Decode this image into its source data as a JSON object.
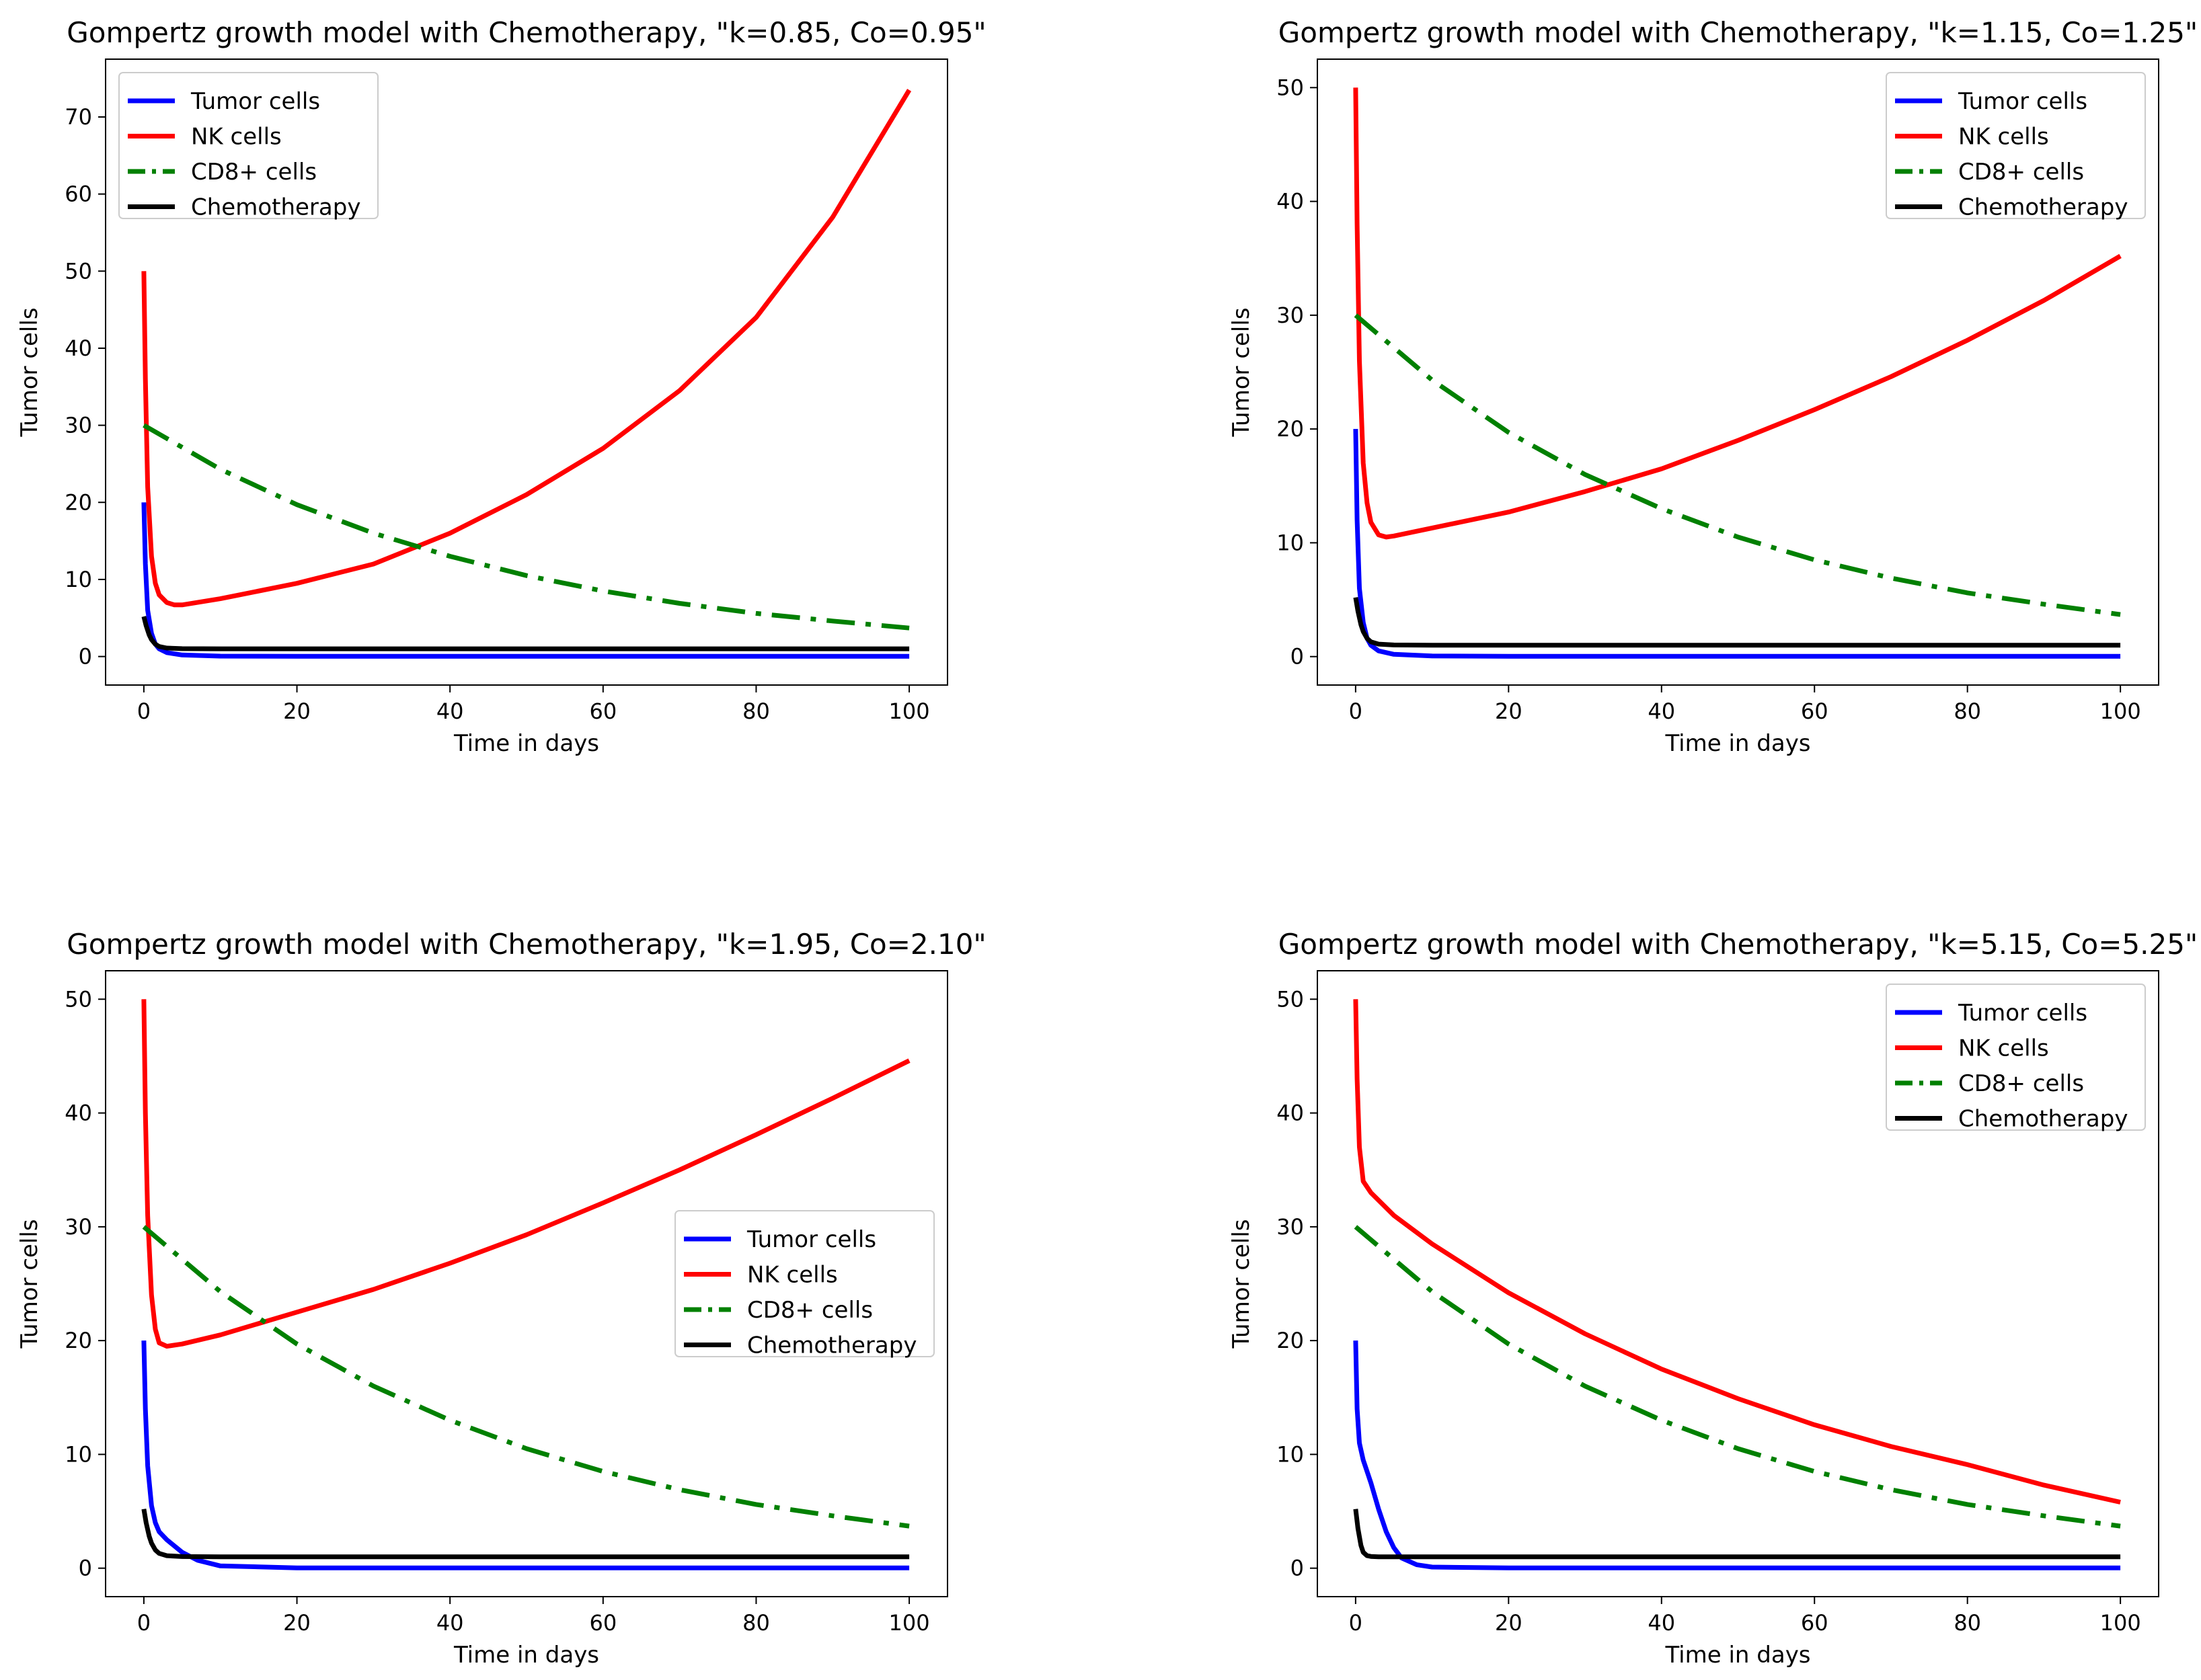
{
  "figure": {
    "type": "line-grid",
    "rows": 2,
    "cols": 2
  },
  "chart_data": [
    {
      "type": "line",
      "title": "Gompertz growth model with Chemotherapy, \"k=0.85, Co=0.95\"",
      "xlabel": "Time in days",
      "ylabel": "Tumor cells",
      "xlim": [
        -5,
        105
      ],
      "ylim": [
        -3.7,
        77.5
      ],
      "xticks": [
        0,
        20,
        40,
        60,
        80,
        100
      ],
      "yticks": [
        0,
        10,
        20,
        30,
        40,
        50,
        60,
        70
      ],
      "legend_position": "upper-left",
      "series": [
        {
          "name": "Tumor cells",
          "color": "#0000ff",
          "style": "solid",
          "points": [
            [
              0,
              20
            ],
            [
              0.2,
              12
            ],
            [
              0.5,
              6
            ],
            [
              1,
              3
            ],
            [
              1.5,
              1.6
            ],
            [
              2,
              1
            ],
            [
              3,
              0.5
            ],
            [
              5,
              0.2
            ],
            [
              10,
              0.05
            ],
            [
              20,
              0.02
            ],
            [
              100,
              0.02
            ]
          ]
        },
        {
          "name": "NK cells",
          "color": "#ff0000",
          "style": "solid",
          "points": [
            [
              0,
              50
            ],
            [
              0.2,
              36
            ],
            [
              0.5,
              22
            ],
            [
              1,
              13
            ],
            [
              1.5,
              9.5
            ],
            [
              2,
              8
            ],
            [
              3,
              7
            ],
            [
              4,
              6.7
            ],
            [
              5,
              6.7
            ],
            [
              10,
              7.5
            ],
            [
              20,
              9.5
            ],
            [
              30,
              12
            ],
            [
              40,
              16
            ],
            [
              50,
              21
            ],
            [
              60,
              27
            ],
            [
              70,
              34.5
            ],
            [
              80,
              44
            ],
            [
              90,
              57
            ],
            [
              100,
              73.5
            ]
          ]
        },
        {
          "name": "CD8+ cells",
          "color": "#008000",
          "style": "dashdot",
          "points": [
            [
              0,
              30
            ],
            [
              10,
              24.3
            ],
            [
              20,
              19.7
            ],
            [
              30,
              16
            ],
            [
              40,
              13
            ],
            [
              50,
              10.5
            ],
            [
              60,
              8.5
            ],
            [
              70,
              6.9
            ],
            [
              80,
              5.6
            ],
            [
              90,
              4.6
            ],
            [
              100,
              3.7
            ]
          ]
        },
        {
          "name": "Chemotherapy",
          "color": "#000000",
          "style": "solid",
          "points": [
            [
              0,
              5.2
            ],
            [
              0.3,
              4
            ],
            [
              0.7,
              2.8
            ],
            [
              1,
              2.2
            ],
            [
              1.5,
              1.6
            ],
            [
              2,
              1.3
            ],
            [
              3,
              1.1
            ],
            [
              5,
              1.02
            ],
            [
              10,
              1
            ],
            [
              100,
              1
            ]
          ]
        }
      ]
    },
    {
      "type": "line",
      "title": "Gompertz growth model with Chemotherapy, \"k=1.15, Co=1.25\"",
      "xlabel": "Time in days",
      "ylabel": "Tumor cells",
      "xlim": [
        -5,
        105
      ],
      "ylim": [
        -2.5,
        52.5
      ],
      "xticks": [
        0,
        20,
        40,
        60,
        80,
        100
      ],
      "yticks": [
        0,
        10,
        20,
        30,
        40,
        50
      ],
      "legend_position": "upper-right",
      "series": [
        {
          "name": "Tumor cells",
          "color": "#0000ff",
          "style": "solid",
          "points": [
            [
              0,
              20
            ],
            [
              0.2,
              12
            ],
            [
              0.5,
              6
            ],
            [
              1,
              3
            ],
            [
              1.5,
              1.6
            ],
            [
              2,
              1
            ],
            [
              3,
              0.5
            ],
            [
              5,
              0.2
            ],
            [
              10,
              0.05
            ],
            [
              20,
              0.02
            ],
            [
              100,
              0.02
            ]
          ]
        },
        {
          "name": "NK cells",
          "color": "#ff0000",
          "style": "solid",
          "points": [
            [
              0,
              50
            ],
            [
              0.2,
              38
            ],
            [
              0.5,
              26
            ],
            [
              1,
              17
            ],
            [
              1.5,
              13.5
            ],
            [
              2,
              11.8
            ],
            [
              3,
              10.7
            ],
            [
              4,
              10.5
            ],
            [
              5,
              10.6
            ],
            [
              10,
              11.3
            ],
            [
              20,
              12.7
            ],
            [
              30,
              14.5
            ],
            [
              40,
              16.5
            ],
            [
              50,
              19
            ],
            [
              60,
              21.7
            ],
            [
              70,
              24.6
            ],
            [
              80,
              27.8
            ],
            [
              90,
              31.3
            ],
            [
              100,
              35.2
            ]
          ]
        },
        {
          "name": "CD8+ cells",
          "color": "#008000",
          "style": "dashdot",
          "points": [
            [
              0,
              30
            ],
            [
              10,
              24.3
            ],
            [
              20,
              19.7
            ],
            [
              30,
              16
            ],
            [
              40,
              13
            ],
            [
              50,
              10.5
            ],
            [
              60,
              8.5
            ],
            [
              70,
              6.9
            ],
            [
              80,
              5.6
            ],
            [
              90,
              4.6
            ],
            [
              100,
              3.7
            ]
          ]
        },
        {
          "name": "Chemotherapy",
          "color": "#000000",
          "style": "solid",
          "points": [
            [
              0,
              5.2
            ],
            [
              0.3,
              4
            ],
            [
              0.7,
              2.8
            ],
            [
              1,
              2.2
            ],
            [
              1.5,
              1.6
            ],
            [
              2,
              1.3
            ],
            [
              3,
              1.1
            ],
            [
              5,
              1.02
            ],
            [
              10,
              1
            ],
            [
              100,
              1
            ]
          ]
        }
      ]
    },
    {
      "type": "line",
      "title": "Gompertz growth model with Chemotherapy, \"k=1.95, Co=2.10\"",
      "xlabel": "Time in days",
      "ylabel": "Tumor cells",
      "xlim": [
        -5,
        105
      ],
      "ylim": [
        -2.5,
        52.5
      ],
      "xticks": [
        0,
        20,
        40,
        60,
        80,
        100
      ],
      "yticks": [
        0,
        10,
        20,
        30,
        40,
        50
      ],
      "legend_position": "center-right",
      "series": [
        {
          "name": "Tumor cells",
          "color": "#0000ff",
          "style": "solid",
          "points": [
            [
              0,
              20
            ],
            [
              0.2,
              14
            ],
            [
              0.5,
              9
            ],
            [
              1,
              5.5
            ],
            [
              1.5,
              4
            ],
            [
              2,
              3.2
            ],
            [
              3,
              2.5
            ],
            [
              5,
              1.4
            ],
            [
              7,
              0.7
            ],
            [
              10,
              0.2
            ],
            [
              20,
              0.03
            ],
            [
              100,
              0.02
            ]
          ]
        },
        {
          "name": "NK cells",
          "color": "#ff0000",
          "style": "solid",
          "points": [
            [
              0,
              50
            ],
            [
              0.2,
              40
            ],
            [
              0.5,
              31
            ],
            [
              1,
              24
            ],
            [
              1.5,
              21
            ],
            [
              2,
              19.8
            ],
            [
              3,
              19.5
            ],
            [
              5,
              19.7
            ],
            [
              10,
              20.5
            ],
            [
              20,
              22.5
            ],
            [
              30,
              24.5
            ],
            [
              40,
              26.8
            ],
            [
              50,
              29.3
            ],
            [
              60,
              32.1
            ],
            [
              70,
              35
            ],
            [
              80,
              38.1
            ],
            [
              90,
              41.3
            ],
            [
              100,
              44.6
            ]
          ]
        },
        {
          "name": "CD8+ cells",
          "color": "#008000",
          "style": "dashdot",
          "points": [
            [
              0,
              30
            ],
            [
              10,
              24.3
            ],
            [
              20,
              19.7
            ],
            [
              30,
              16
            ],
            [
              40,
              13
            ],
            [
              50,
              10.5
            ],
            [
              60,
              8.5
            ],
            [
              70,
              6.9
            ],
            [
              80,
              5.6
            ],
            [
              90,
              4.6
            ],
            [
              100,
              3.7
            ]
          ]
        },
        {
          "name": "Chemotherapy",
          "color": "#000000",
          "style": "solid",
          "points": [
            [
              0,
              5.2
            ],
            [
              0.3,
              4
            ],
            [
              0.7,
              2.8
            ],
            [
              1,
              2.2
            ],
            [
              1.5,
              1.6
            ],
            [
              2,
              1.3
            ],
            [
              3,
              1.1
            ],
            [
              5,
              1.02
            ],
            [
              10,
              1
            ],
            [
              100,
              1
            ]
          ]
        }
      ]
    },
    {
      "type": "line",
      "title": "Gompertz growth model with Chemotherapy, \"k=5.15, Co=5.25\"",
      "xlabel": "Time in days",
      "ylabel": "Tumor cells",
      "xlim": [
        -5,
        105
      ],
      "ylim": [
        -2.5,
        52.5
      ],
      "xticks": [
        0,
        20,
        40,
        60,
        80,
        100
      ],
      "yticks": [
        0,
        10,
        20,
        30,
        40,
        50
      ],
      "legend_position": "upper-right",
      "series": [
        {
          "name": "Tumor cells",
          "color": "#0000ff",
          "style": "solid",
          "points": [
            [
              0,
              20
            ],
            [
              0.2,
              14
            ],
            [
              0.5,
              11
            ],
            [
              1,
              9.5
            ],
            [
              2,
              7.5
            ],
            [
              3,
              5.2
            ],
            [
              4,
              3.2
            ],
            [
              5,
              1.8
            ],
            [
              6,
              0.9
            ],
            [
              8,
              0.3
            ],
            [
              10,
              0.1
            ],
            [
              20,
              0.02
            ],
            [
              100,
              0.02
            ]
          ]
        },
        {
          "name": "NK cells",
          "color": "#ff0000",
          "style": "solid",
          "points": [
            [
              0,
              50
            ],
            [
              0.2,
              43
            ],
            [
              0.5,
              37
            ],
            [
              1,
              34
            ],
            [
              2,
              33
            ],
            [
              5,
              31
            ],
            [
              10,
              28.5
            ],
            [
              20,
              24.2
            ],
            [
              30,
              20.6
            ],
            [
              40,
              17.5
            ],
            [
              50,
              14.9
            ],
            [
              60,
              12.6
            ],
            [
              70,
              10.7
            ],
            [
              80,
              9.1
            ],
            [
              90,
              7.3
            ],
            [
              100,
              5.8
            ]
          ]
        },
        {
          "name": "CD8+ cells",
          "color": "#008000",
          "style": "dashdot",
          "points": [
            [
              0,
              30
            ],
            [
              10,
              24.3
            ],
            [
              20,
              19.7
            ],
            [
              30,
              16
            ],
            [
              40,
              13
            ],
            [
              50,
              10.5
            ],
            [
              60,
              8.5
            ],
            [
              70,
              6.9
            ],
            [
              80,
              5.6
            ],
            [
              90,
              4.6
            ],
            [
              100,
              3.7
            ]
          ]
        },
        {
          "name": "Chemotherapy",
          "color": "#000000",
          "style": "solid",
          "points": [
            [
              0,
              5.2
            ],
            [
              0.3,
              3.5
            ],
            [
              0.7,
              2
            ],
            [
              1,
              1.4
            ],
            [
              1.5,
              1.1
            ],
            [
              2,
              1.03
            ],
            [
              3,
              1
            ],
            [
              100,
              1
            ]
          ]
        }
      ]
    }
  ]
}
